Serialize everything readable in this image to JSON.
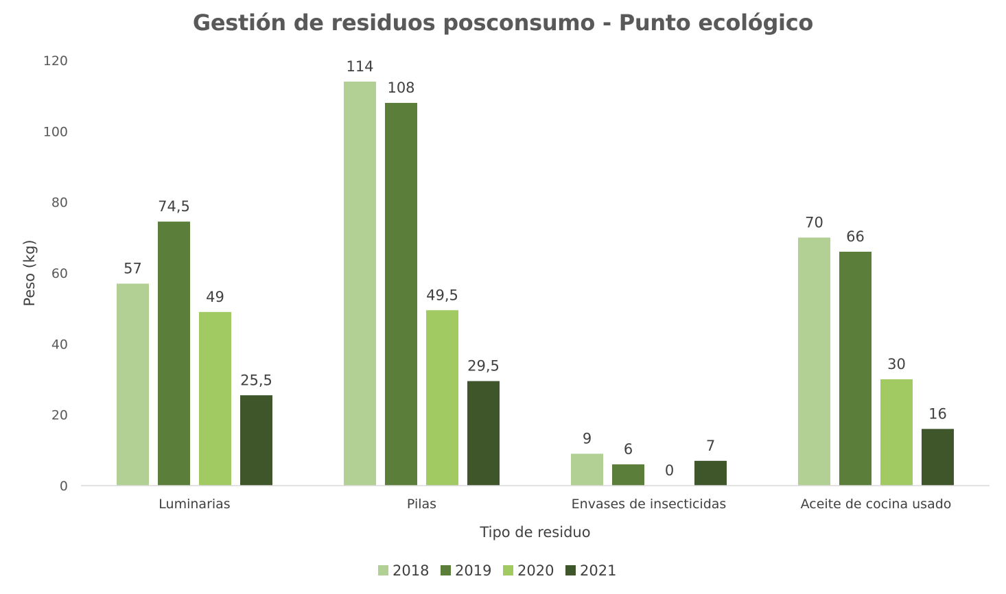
{
  "chart_data": {
    "type": "bar",
    "title": "Gestión de residuos posconsumo - Punto ecológico",
    "xlabel": "Tipo de residuo",
    "ylabel": "Peso (kg)",
    "ylim": [
      0,
      120
    ],
    "yticks": [
      0,
      20,
      40,
      60,
      80,
      100,
      120
    ],
    "grid": false,
    "legend_position": "bottom",
    "categories": [
      "Luminarias",
      "Pilas",
      "Envases de insecticidas",
      "Aceite de cocina usado"
    ],
    "series": [
      {
        "name": "2018",
        "color": "#b2cf94",
        "values": [
          57,
          114,
          9,
          70
        ],
        "labels": [
          "57",
          "114",
          "9",
          "70"
        ]
      },
      {
        "name": "2019",
        "color": "#5b7f3b",
        "values": [
          74.5,
          108,
          6,
          66
        ],
        "labels": [
          "74,5",
          "108",
          "6",
          "66"
        ]
      },
      {
        "name": "2020",
        "color": "#a1ca62",
        "values": [
          49,
          49.5,
          0,
          30
        ],
        "labels": [
          "49",
          "49,5",
          "0",
          "30"
        ]
      },
      {
        "name": "2021",
        "color": "#3e562a",
        "values": [
          25.5,
          29.5,
          7,
          16
        ],
        "labels": [
          "25,5",
          "29,5",
          "7",
          "16"
        ]
      }
    ]
  }
}
